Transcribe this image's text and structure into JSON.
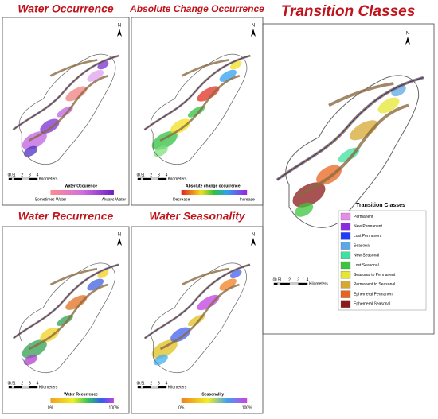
{
  "panels": [
    {
      "title": "Water Occurrence",
      "legend": {
        "title": "Water Occurence",
        "low": "Sometimes Water",
        "high": "Always Water"
      }
    },
    {
      "title": "Absolute Change Occurrence",
      "legend": {
        "title": "Absolute change occurrence",
        "low": "Decrease",
        "high": "Increase"
      }
    },
    {
      "title": "Water Recurrence",
      "legend": {
        "title": "Water Recurrence",
        "low": "0%",
        "high": "100%"
      }
    },
    {
      "title": "Water Seasonality",
      "legend": {
        "title": "Seasonality",
        "low": "0%",
        "high": "100%"
      }
    }
  ],
  "transition": {
    "title": "Transition Classes",
    "legend_title": "Transition Classes",
    "classes": [
      {
        "label": "Permanent",
        "color": "#e58ce8"
      },
      {
        "label": "New Permanent",
        "color": "#8a2be2"
      },
      {
        "label": "Lost Permanent",
        "color": "#1e3cff"
      },
      {
        "label": "Seasonal",
        "color": "#5aa8e6"
      },
      {
        "label": "New Seasonal",
        "color": "#3fe0a0"
      },
      {
        "label": "Lost Seasonal",
        "color": "#3cc43c"
      },
      {
        "label": "Seasonal to Permanent",
        "color": "#e6e632"
      },
      {
        "label": "Permanent to Seasonal",
        "color": "#d4a832"
      },
      {
        "label": "Ephemeral Permanent",
        "color": "#e8641e"
      },
      {
        "label": "Ephemeral Seasonal",
        "color": "#8b1a1a"
      }
    ]
  },
  "scale_bar": [
    "0",
    "0.5",
    "1",
    "2",
    "3",
    "4",
    "Kilometers"
  ],
  "north": "N"
}
